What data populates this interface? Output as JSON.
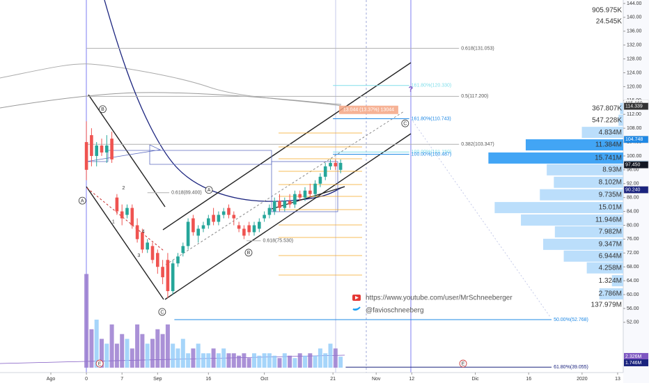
{
  "chart_data": {
    "type": "candlestick",
    "open": [
      104,
      106,
      100,
      103,
      101,
      105,
      88,
      84,
      83,
      85,
      80,
      78,
      73,
      74,
      72,
      68,
      70,
      61,
      69,
      72,
      74,
      82,
      77,
      79,
      80,
      83,
      81,
      83,
      85,
      83,
      80,
      79,
      80,
      78,
      79,
      82,
      83,
      84,
      87,
      85,
      87,
      86,
      89,
      88,
      90,
      89,
      92,
      94,
      97,
      98,
      96
    ],
    "high": [
      110,
      108,
      104,
      105,
      106,
      107,
      89,
      86,
      86,
      86,
      82,
      79,
      76,
      75,
      73,
      70,
      72,
      70,
      72,
      75,
      82,
      83,
      80,
      81,
      83,
      85,
      84,
      85,
      86,
      84,
      81,
      80,
      81,
      81,
      82,
      84,
      86,
      88,
      89,
      88,
      89,
      90,
      90,
      91,
      92,
      93,
      95,
      98,
      99,
      99,
      99
    ],
    "low": [
      93,
      97,
      97,
      100,
      98,
      98,
      83,
      80,
      82,
      79,
      75,
      72,
      72,
      69,
      66,
      63,
      59,
      60,
      68,
      71,
      73,
      77,
      75,
      78,
      79,
      80,
      80,
      82,
      82,
      80,
      78,
      76,
      77,
      77,
      78,
      81,
      82,
      83,
      84,
      84,
      85,
      85,
      87,
      87,
      88,
      88,
      91,
      93,
      96,
      96,
      95
    ],
    "close": [
      96,
      100,
      103,
      101,
      103,
      99,
      84,
      82,
      85,
      80,
      76,
      73,
      75,
      70,
      68,
      65,
      61,
      69,
      71,
      74,
      81,
      78,
      79,
      80,
      82,
      81,
      83,
      84,
      83,
      82,
      79,
      77,
      78,
      80,
      81,
      83,
      85,
      87,
      85,
      87,
      86,
      89,
      88,
      90,
      89,
      92,
      94,
      97,
      98,
      97,
      98
    ],
    "up_color": "#26a69a",
    "down_color": "#ef5350",
    "volume": [
      19.5,
      8,
      10,
      6,
      5,
      9,
      5,
      7,
      6,
      4,
      9,
      7,
      5,
      6,
      8,
      7,
      9,
      5,
      4,
      6,
      3,
      4,
      5,
      3,
      3,
      4,
      3,
      4,
      3,
      3,
      2.5,
      3,
      2,
      3,
      2.5,
      3,
      3,
      2.5,
      2,
      3,
      2.5,
      2,
      3,
      2.5,
      3,
      2.5,
      4,
      3,
      5,
      4,
      2.3
    ],
    "volume_up_color": "#90caf9",
    "volume_down_color": "#9575cd",
    "volume_labels": [
      {
        "value": 2.326,
        "label": "2.326M",
        "color": "#7e57c2"
      },
      {
        "value": 1.746,
        "label": "1.746M",
        "color": "#1a237e"
      }
    ],
    "xlim": [
      -17,
      105.6
    ],
    "ylim": [
      37.5,
      145
    ],
    "xticks": [
      {
        "value": -7,
        "label": "Ago"
      },
      0,
      7,
      {
        "value": 14,
        "label": "Sep"
      },
      {
        "value": 24,
        "label": "16"
      },
      {
        "value": 35,
        "label": "Oct"
      },
      {
        "value": 48.5,
        "label": "21"
      },
      {
        "value": 57,
        "label": "Nov"
      },
      {
        "value": 64,
        "label": "12"
      },
      {
        "value": 76.5,
        "label": "Dic"
      },
      {
        "value": 87,
        "label": "16"
      },
      {
        "value": 97.5,
        "label": "2020"
      },
      {
        "value": 104.5,
        "label": "13"
      }
    ],
    "yticks": [
      {
        "value": 144,
        "label": "144.00"
      },
      {
        "value": 140,
        "label": "140.00"
      },
      {
        "value": 136,
        "label": "136.00"
      },
      {
        "value": 132,
        "label": "132.00"
      },
      {
        "value": 128,
        "label": "128.00"
      },
      {
        "value": 124,
        "label": "124.00"
      },
      {
        "value": 120,
        "label": "120.00"
      },
      {
        "value": 116,
        "label": "116.00"
      },
      {
        "value": 112,
        "label": "112.00"
      },
      {
        "value": 108,
        "label": "108.00"
      },
      {
        "value": 104,
        "label": "104.00"
      },
      {
        "value": 100,
        "label": "100.00"
      },
      {
        "value": 96,
        "label": "96.00"
      },
      {
        "value": 92,
        "label": "92.00"
      },
      {
        "value": 88,
        "label": "88.00"
      },
      {
        "value": 84,
        "label": "84.00"
      },
      {
        "value": 80,
        "label": "80.00"
      },
      {
        "value": 76,
        "label": "76.00"
      },
      {
        "value": 72,
        "label": "72.00"
      },
      {
        "value": 68,
        "label": "68.00"
      },
      {
        "value": 64,
        "label": "64.00"
      },
      {
        "value": 60,
        "label": "60.00"
      },
      {
        "value": 56,
        "label": "56.00"
      },
      {
        "value": 52,
        "label": "52.00"
      }
    ],
    "price_labels": [
      {
        "value": 115.169,
        "color": "#ffffff",
        "text_color": "#333333"
      },
      {
        "value": 114.339,
        "color": "#333333",
        "text_color": "#ffffff"
      },
      {
        "value": 104.748,
        "color": "#1e88e5",
        "text_color": "#ffffff"
      },
      {
        "value": 97.633,
        "color": "#90caf9",
        "text_color": "#0d47a1"
      },
      {
        "value": 97.45,
        "label": "97.450",
        "color": "#131722",
        "text_color": "#ffffff"
      },
      {
        "value": 90.24,
        "label": "90.240",
        "color": "#1a237e",
        "text_color": "#ffffff"
      }
    ],
    "levels": [
      {
        "label": "0.618(131.053)",
        "value": 131.053,
        "from": 0,
        "to": 73.3,
        "color": "#b0b0b0"
      },
      {
        "label": "0.5(117.200)",
        "value": 117.2,
        "from": 0,
        "to": 73.3,
        "color": "#b0b0b0"
      },
      {
        "label": "0.382(103.347)",
        "value": 103.347,
        "from": 0,
        "to": 73.3,
        "color": "#b0b0b0"
      },
      {
        "label": "161.80%(120.330)",
        "value": 120.33,
        "from": 48.5,
        "to": 63.5,
        "color": "#80deea"
      },
      {
        "label": "161.80%(110.743)",
        "value": 110.743,
        "from": 48.5,
        "to": 63.5,
        "color": "#1e88e5"
      },
      {
        "label": "100.00%(101.150)",
        "value": 101.15,
        "from": 48.5,
        "to": 63.5,
        "color": "#80deea"
      },
      {
        "label": "100.00%(100.487)",
        "value": 100.487,
        "from": 48.5,
        "to": 63.5,
        "color": "#1e88e5"
      },
      {
        "label": "0.618(89.400)",
        "value": 89.4,
        "from": 12,
        "to": 16.3,
        "color": "#b0b0b0"
      },
      {
        "label": "0.618(75.530)",
        "value": 75.53,
        "from": 31.5,
        "to": 34.3,
        "color": "#b0b0b0"
      },
      {
        "label": "50.00%(52.768)",
        "value": 52.768,
        "from": 17.3,
        "to": 91.5,
        "color": "#1e88e5"
      },
      {
        "label": "61.80%(39.055)",
        "value": 39.055,
        "from": 51,
        "to": 91.5,
        "color": "#1a237e"
      }
    ],
    "volume_profile": {
      "levels": [
        113.7,
        110.3,
        106.8,
        103.2,
        99.4,
        96.0,
        92.4,
        88.8,
        85.1,
        81.5,
        78.1,
        74.5,
        71.1,
        67.7,
        64.0,
        60.2
      ],
      "values": [
        0.367807,
        0.547228,
        4.834,
        11.384,
        15.741,
        8.93,
        8.102,
        9.735,
        15.01,
        11.946,
        7.982,
        9.347,
        6.944,
        4.258,
        1.324,
        2.786
      ],
      "value_labels": [
        "367.807K",
        "547.228K",
        "4.834M",
        "11.384M",
        "15.741M",
        "8.93M",
        "8.102M",
        "9.735M",
        "15.01M",
        "11.946M",
        "7.982M",
        "9.347M",
        "6.944M",
        "4.258M",
        "1.324M",
        "2.786M"
      ],
      "colors": [
        "#bbdefb",
        "#bbdefb",
        "#bbdefb",
        "#42a5f5",
        "#42a5f5",
        "#bbdefb",
        "#bbdefb",
        "#bbdefb",
        "#bbdefb",
        "#bbdefb",
        "#bbdefb",
        "#bbdefb",
        "#bbdefb",
        "#bbdefb",
        "#bbdefb",
        "#bbdefb"
      ]
    },
    "side_labels": [
      "905.975K",
      "24.545K",
      "137.979M"
    ],
    "annotations": [
      {
        "text": "A",
        "x": -0.8,
        "y": 87.1,
        "circled": true
      },
      {
        "text": "B",
        "x": 3.2,
        "y": 113.5,
        "circled": true
      },
      {
        "text": "C",
        "x": 14.9,
        "y": 55.0,
        "circled": true
      },
      {
        "text": "A",
        "x": 24.1,
        "y": 90.2,
        "circled": true
      },
      {
        "text": "B",
        "x": 31.9,
        "y": 72.1,
        "circled": true
      },
      {
        "text": "C",
        "x": 62.7,
        "y": 109.4,
        "circled": true
      },
      {
        "text": "E",
        "x": 2.6,
        "y": 40.1,
        "circled": true
      },
      {
        "text": "E",
        "x": 74.1,
        "y": 40.1,
        "circled": true
      },
      {
        "text": "1",
        "x": 5.3,
        "y": 81.1,
        "circled": false
      },
      {
        "text": "2",
        "x": 7.3,
        "y": 90.8,
        "circled": false
      },
      {
        "text": "3",
        "x": 10.3,
        "y": 71.3,
        "circled": false
      },
      {
        "text": "4",
        "x": 11.2,
        "y": 78.3,
        "circled": false
      },
      {
        "text": "?",
        "x": 63.8,
        "y": 119.3,
        "circled": false
      }
    ],
    "measure": "13.044 (13.37%) 13044",
    "links": [
      "https://www.youtube.com/user/MrSchneeberger",
      "@favioschneeberg"
    ]
  }
}
